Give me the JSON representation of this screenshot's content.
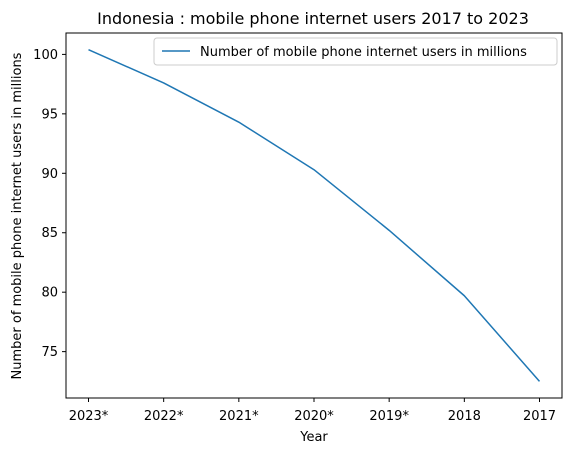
{
  "chart_data": {
    "type": "line",
    "title": "Indonesia : mobile phone internet users 2017 to 2023",
    "xlabel": "Year",
    "ylabel": "Number of mobile phone internet users in millions",
    "categories": [
      "2023*",
      "2022*",
      "2021*",
      "2020*",
      "2019*",
      "2018",
      "2017"
    ],
    "series": [
      {
        "name": "Number of mobile phone internet users in millions",
        "color": "#1f77b4",
        "values": [
          100.4,
          97.6,
          94.3,
          90.3,
          85.2,
          79.7,
          72.5
        ]
      }
    ],
    "ylim": [
      71.1,
      101.8
    ],
    "yticks": [
      75,
      80,
      85,
      90,
      95,
      100
    ],
    "legend_position": "top-right",
    "grid": false
  }
}
